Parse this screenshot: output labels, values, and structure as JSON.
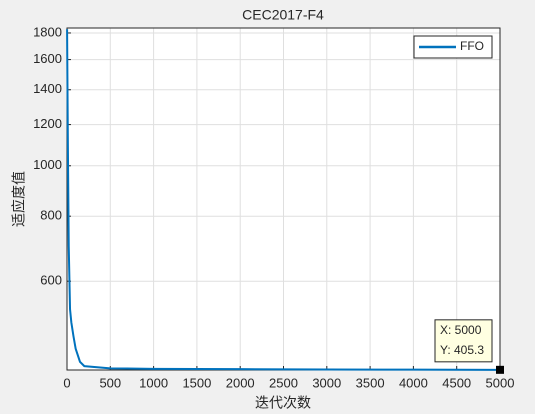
{
  "chart_data": {
    "type": "line",
    "title": "CEC2017-F4",
    "x_label": "迭代次数",
    "y_label": "适应度值",
    "x": [
      1,
      10,
      20,
      35,
      50,
      75,
      100,
      150,
      200,
      500,
      1000,
      2000,
      3000,
      4000,
      5000
    ],
    "series": [
      {
        "name": "FFO",
        "color": "#0072bd",
        "values": [
          1830,
          1100,
          700,
          530,
          500,
          470,
          445,
          420,
          412,
          408,
          407,
          406.5,
          406,
          405.6,
          405.3
        ]
      }
    ],
    "xlim": [
      0,
      5000
    ],
    "xticks": [
      0,
      500,
      1000,
      1500,
      2000,
      2500,
      3000,
      3500,
      4000,
      4500,
      5000
    ],
    "ylim": [
      405,
      1840
    ],
    "yticks": [
      600,
      800,
      1000,
      1200,
      1400,
      1600,
      1800
    ],
    "y_scale": "log",
    "grid": true,
    "legend_position": "northeast",
    "datatip": {
      "x": 5000,
      "y": 405.3,
      "labels": [
        "X: 5000",
        "Y: 405.3"
      ]
    }
  }
}
